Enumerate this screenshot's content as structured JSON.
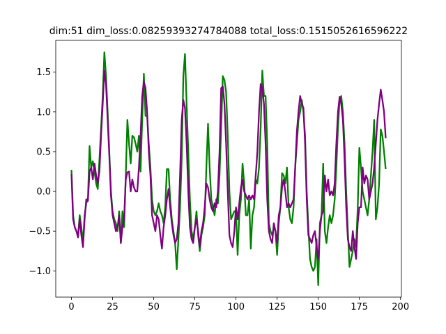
{
  "chart_data": {
    "type": "line",
    "title": "dim:51 dim_loss:0.08259393274784088 total_loss:0.1515052616596222",
    "x": [
      0,
      1,
      2,
      3,
      4,
      5,
      6,
      7,
      8,
      9,
      10,
      11,
      12,
      13,
      14,
      15,
      16,
      17,
      18,
      19,
      20,
      21,
      22,
      23,
      24,
      25,
      26,
      27,
      28,
      29,
      30,
      31,
      32,
      33,
      34,
      35,
      36,
      37,
      38,
      39,
      40,
      41,
      42,
      43,
      44,
      45,
      46,
      47,
      48,
      49,
      50,
      51,
      52,
      53,
      54,
      55,
      56,
      57,
      58,
      59,
      60,
      61,
      62,
      63,
      64,
      65,
      66,
      67,
      68,
      69,
      70,
      71,
      72,
      73,
      74,
      75,
      76,
      77,
      78,
      79,
      80,
      81,
      82,
      83,
      84,
      85,
      86,
      87,
      88,
      89,
      90,
      91,
      92,
      93,
      94,
      95,
      96,
      97,
      98,
      99,
      100,
      101,
      102,
      103,
      104,
      105,
      106,
      107,
      108,
      109,
      110,
      111,
      112,
      113,
      114,
      115,
      116,
      117,
      118,
      119,
      120,
      121,
      122,
      123,
      124,
      125,
      126,
      127,
      128,
      129,
      130,
      131,
      132,
      133,
      134,
      135,
      136,
      137,
      138,
      139,
      140,
      141,
      142,
      143,
      144,
      145,
      146,
      147,
      148,
      149,
      150,
      151,
      152,
      153,
      154,
      155,
      156,
      157,
      158,
      159,
      160,
      161,
      162,
      163,
      164,
      165,
      166,
      167,
      168,
      169,
      170,
      171,
      172,
      173,
      174,
      175,
      176,
      177,
      178,
      179,
      180,
      181,
      182,
      183,
      184,
      185,
      186,
      187,
      188,
      189,
      190,
      191
    ],
    "series": [
      {
        "color": "#008000",
        "values": [
          0.27,
          -0.3,
          -0.45,
          -0.5,
          -0.55,
          -0.3,
          -0.45,
          -0.65,
          -0.3,
          -0.15,
          -0.1,
          0.57,
          0.3,
          0.38,
          0.25,
          0.1,
          0.03,
          0.4,
          0.8,
          1.2,
          1.75,
          1.45,
          1.0,
          0.5,
          0.0,
          -0.25,
          -0.35,
          -0.4,
          -0.5,
          -0.25,
          -0.65,
          -0.25,
          -0.45,
          0.2,
          0.9,
          0.6,
          0.35,
          0.7,
          0.68,
          0.6,
          0.5,
          0.7,
          0.25,
          0.9,
          1.48,
          0.95,
          0.95,
          0.6,
          0.3,
          -0.1,
          -0.25,
          -0.3,
          -0.25,
          -0.15,
          -0.25,
          -0.3,
          -0.4,
          -0.2,
          0.28,
          0.28,
          -0.1,
          -0.35,
          -0.5,
          -0.65,
          -0.98,
          -0.6,
          -0.2,
          0.4,
          1.45,
          1.73,
          1.1,
          0.5,
          -0.1,
          -0.5,
          -0.6,
          -0.45,
          -0.25,
          -0.55,
          -0.75,
          -0.55,
          -0.45,
          -0.3,
          0.3,
          0.85,
          0.3,
          -0.1,
          -0.2,
          -0.3,
          -0.1,
          -0.15,
          0.2,
          0.8,
          1.45,
          1.4,
          1.25,
          0.7,
          0.0,
          -0.35,
          -0.3,
          -0.25,
          -0.25,
          -0.8,
          -0.3,
          -0.1,
          0.35,
          0.1,
          -0.3,
          -0.3,
          -0.1,
          -0.72,
          -0.3,
          -0.2,
          0.15,
          0.1,
          0.3,
          0.8,
          1.52,
          1.2,
          1.2,
          0.6,
          -0.4,
          -0.5,
          -0.55,
          -0.45,
          -0.5,
          -0.8,
          -0.4,
          -0.2,
          0.23,
          0.2,
          0.1,
          0.3,
          -0.2,
          -0.35,
          -0.4,
          -0.2,
          0.3,
          0.6,
          0.9,
          1.0,
          1.15,
          1.0,
          0.7,
          0.0,
          -0.45,
          -0.85,
          -0.95,
          -1.0,
          -0.95,
          -0.6,
          -1.18,
          -0.4,
          -0.3,
          0.35,
          -0.5,
          -0.65,
          -0.45,
          -0.3,
          -0.4,
          -0.3,
          -0.1,
          0.3,
          0.8,
          1.15,
          1.2,
          1.0,
          0.6,
          0.0,
          -0.5,
          -0.95,
          -0.85,
          -0.75,
          -0.6,
          -0.7,
          -0.2,
          0.55,
          0.3,
          0.0,
          -0.1,
          -0.2,
          -0.3,
          -0.1,
          0.2,
          0.5,
          0.9,
          -0.35,
          -0.2,
          0.1,
          0.78,
          0.7,
          0.5,
          0.28
        ]
      },
      {
        "color": "#800080",
        "values": [
          0.22,
          -0.35,
          -0.45,
          -0.5,
          -0.58,
          -0.35,
          -0.55,
          -0.7,
          -0.35,
          -0.1,
          -0.12,
          0.25,
          0.3,
          0.15,
          0.35,
          0.2,
          0.1,
          0.25,
          0.7,
          1.1,
          1.52,
          1.35,
          0.9,
          0.45,
          -0.05,
          -0.3,
          -0.4,
          -0.5,
          -0.45,
          -0.3,
          -0.65,
          -0.45,
          -0.35,
          0.15,
          0.24,
          0.25,
          0.0,
          0.15,
          0.05,
          0.0,
          0.0,
          0.3,
          0.7,
          1.2,
          1.38,
          1.3,
          1.0,
          0.5,
          0.2,
          -0.3,
          -0.4,
          -0.5,
          -0.3,
          -0.35,
          -0.55,
          -0.72,
          -0.45,
          -0.3,
          -0.1,
          0.03,
          -0.2,
          -0.4,
          -0.55,
          -0.65,
          -0.6,
          -0.4,
          0.2,
          0.9,
          1.15,
          1.05,
          0.6,
          0.0,
          -0.45,
          -0.6,
          -0.65,
          -0.45,
          -0.35,
          -0.5,
          -0.7,
          -0.5,
          -0.4,
          -0.2,
          0.1,
          0.05,
          -0.1,
          -0.2,
          -0.25,
          -0.15,
          -0.2,
          0.0,
          0.5,
          1.3,
          1.32,
          1.1,
          0.6,
          0.0,
          -0.55,
          -0.65,
          -0.7,
          -0.5,
          -0.2,
          -0.35,
          -0.15,
          0.05,
          0.15,
          0.0,
          -0.05,
          -0.1,
          -0.05,
          -0.1,
          -0.05,
          -0.1,
          0.2,
          0.5,
          1.0,
          1.35,
          1.3,
          1.1,
          0.6,
          -0.1,
          -0.5,
          -0.6,
          -0.65,
          -0.4,
          -0.5,
          -0.65,
          -0.3,
          -0.2,
          0.05,
          0.15,
          0.0,
          -0.2,
          -0.15,
          -0.2,
          -0.15,
          -0.1,
          0.3,
          0.75,
          1.0,
          1.2,
          1.1,
          1.05,
          0.6,
          -0.1,
          -0.55,
          -0.6,
          -0.65,
          -0.55,
          -0.5,
          -0.7,
          -0.85,
          -0.5,
          -0.3,
          -0.25,
          0.2,
          0.0,
          0.15,
          -0.05,
          0.0,
          -0.05,
          0.1,
          0.6,
          1.0,
          1.19,
          1.1,
          0.9,
          0.4,
          -0.2,
          -0.6,
          -0.7,
          -0.75,
          -0.5,
          -0.7,
          -0.85,
          -0.4,
          -0.2,
          -0.2,
          0.3,
          0.1,
          0.2,
          0.15,
          -0.1,
          0.0,
          0.1,
          0.3,
          0.6,
          0.9,
          1.1,
          1.28,
          1.15,
          1.0,
          0.67
        ]
      }
    ],
    "xlim": [
      -9.55,
      200.55
    ],
    "ylim": [
      -1.33,
      1.9
    ],
    "xticks": [
      0,
      25,
      50,
      75,
      100,
      125,
      150,
      175,
      200
    ],
    "yticks": [
      {
        "value": -1.0,
        "label": "−1.0"
      },
      {
        "value": -0.5,
        "label": "−0.5"
      },
      {
        "value": 0.0,
        "label": "0.0"
      },
      {
        "value": 0.5,
        "label": "0.5"
      },
      {
        "value": 1.0,
        "label": "1.0"
      },
      {
        "value": 1.5,
        "label": "1.5"
      }
    ],
    "grid": false
  }
}
